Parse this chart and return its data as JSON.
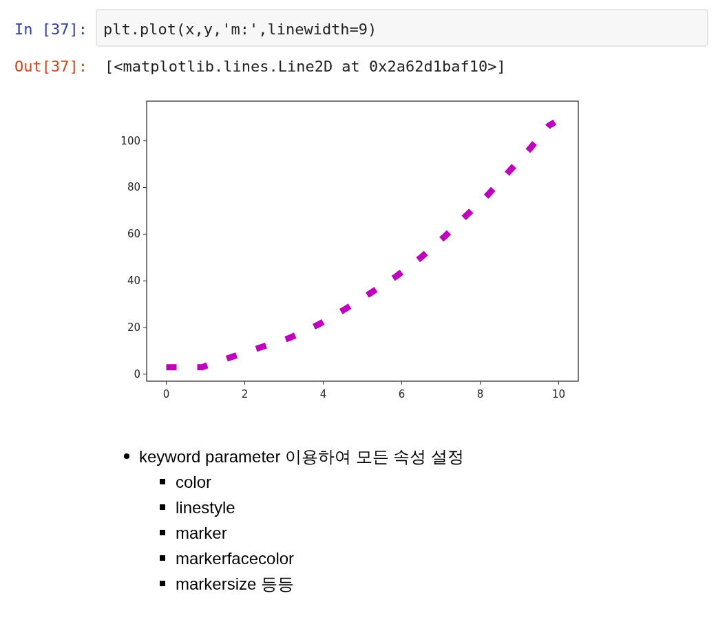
{
  "chart_data": {
    "type": "line",
    "annotations": [
      "In [37]:",
      "plt.plot(x,y,'m:',linewidth=9)",
      "Out[37]:",
      "[<matplotlib.lines.Line2D at 0x2a62d1baf10>]",
      "keyword parameter 이용하여 모든 속성 설정",
      "color",
      "linestyle",
      "marker",
      "markerfacecolor",
      "markersize 등등"
    ],
    "x": [
      0,
      0.12,
      0.91,
      1.67,
      2.41,
      3.15,
      3.87,
      4.53,
      5.2,
      5.85,
      6.49,
      7.08,
      7.64,
      8.21,
      8.73,
      9.26,
      9.75,
      9.9
    ],
    "series": [
      {
        "color": "#bf00bf",
        "values": [
          3,
          3,
          3,
          7.4,
          11.5,
          15.6,
          21.2,
          27.6,
          34.7,
          41.8,
          50,
          58.8,
          67.9,
          77.1,
          86.8,
          96.5,
          106.5,
          108
        ]
      }
    ],
    "xlim": [
      -0.5,
      10.5
    ],
    "ylim": [
      -3,
      117
    ],
    "xticks": [
      0,
      2,
      4,
      6,
      8,
      10
    ],
    "yticks": [
      0,
      20,
      40,
      60,
      80,
      100
    ],
    "line_style": "dotted",
    "marker": "none",
    "grid": false
  }
}
